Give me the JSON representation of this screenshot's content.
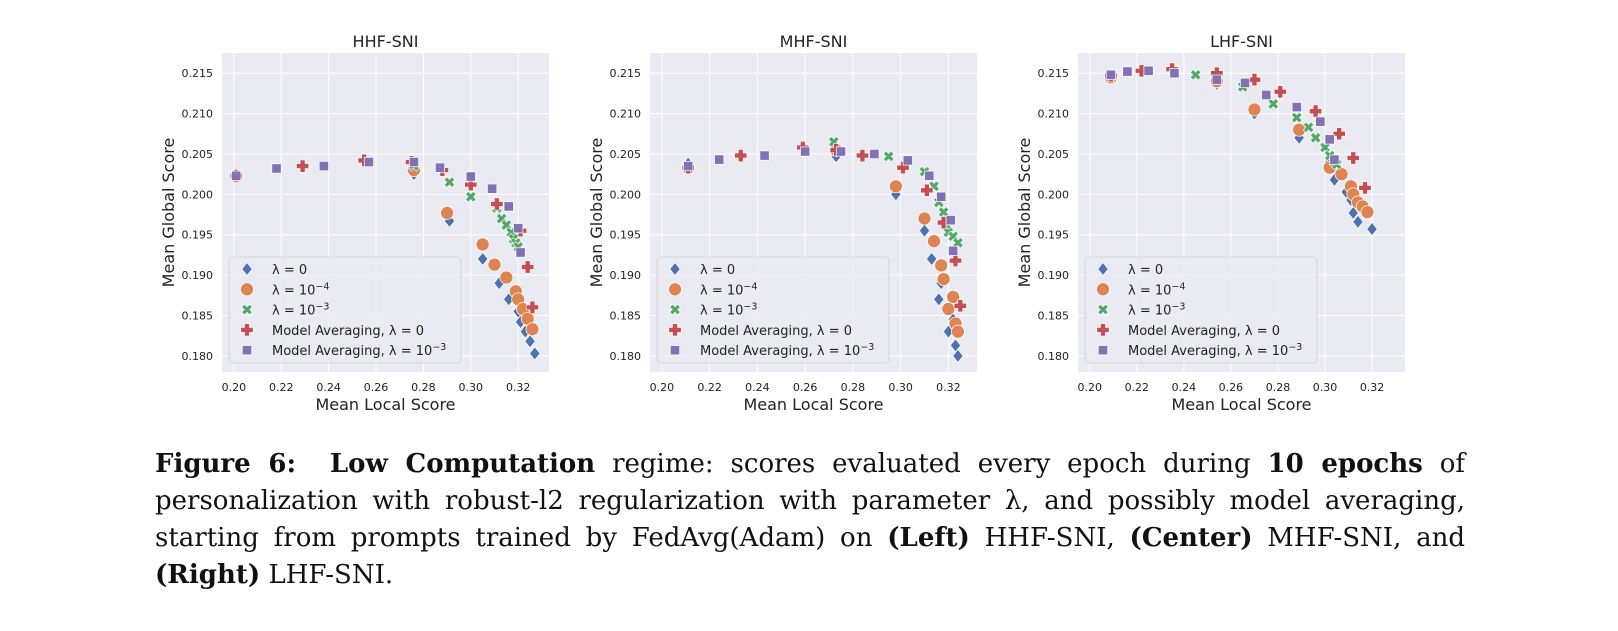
{
  "colors": {
    "panel_bg": "#eaeaf2",
    "grid": "#ffffff",
    "lambda0": "#4c72b0",
    "lambda1e4": "#dd8452",
    "lambda1e3": "#55a868",
    "avg0": "#c44e52",
    "avg1e3": "#8172b3"
  },
  "legend": {
    "items": [
      {
        "key": "lambda0",
        "pre": "",
        "expr": "λ = 0",
        "sup": "",
        "marker": "diamond"
      },
      {
        "key": "lambda1e4",
        "pre": "",
        "expr": "λ = 10",
        "sup": "−4",
        "marker": "circle"
      },
      {
        "key": "lambda1e3",
        "pre": "",
        "expr": "λ = 10",
        "sup": "−3",
        "marker": "x"
      },
      {
        "key": "avg0",
        "pre": "Model Averaging, ",
        "expr": "λ = 0",
        "sup": "",
        "marker": "plus"
      },
      {
        "key": "avg1e3",
        "pre": "Model Averaging, ",
        "expr": "λ = 10",
        "sup": "−3",
        "marker": "square"
      }
    ]
  },
  "chart_data": [
    {
      "type": "scatter",
      "title": "HHF-SNI",
      "xlabel": "Mean Local Score",
      "ylabel": "Mean Global Score",
      "xlim": [
        0.195,
        0.333
      ],
      "ylim": [
        0.178,
        0.2175
      ],
      "xticks": [
        0.2,
        0.22,
        0.24,
        0.26,
        0.28,
        0.3,
        0.32
      ],
      "xtick_labels": [
        "0.20",
        "0.22",
        "0.24",
        "0.26",
        "0.28",
        "0.30",
        "0.32"
      ],
      "yticks": [
        0.18,
        0.185,
        0.19,
        0.195,
        0.2,
        0.205,
        0.21,
        0.215
      ],
      "ytick_labels": [
        "0.180",
        "0.185",
        "0.190",
        "0.195",
        "0.200",
        "0.205",
        "0.210",
        "0.215"
      ],
      "series": [
        {
          "key": "lambda0",
          "points": [
            [
              0.201,
              0.2025
            ],
            [
              0.276,
              0.2025
            ],
            [
              0.291,
              0.1967
            ],
            [
              0.305,
              0.192
            ],
            [
              0.312,
              0.189
            ],
            [
              0.316,
              0.187
            ],
            [
              0.32,
              0.1855
            ],
            [
              0.321,
              0.1842
            ],
            [
              0.323,
              0.183
            ],
            [
              0.325,
              0.1818
            ],
            [
              0.327,
              0.1803
            ]
          ]
        },
        {
          "key": "lambda1e4",
          "points": [
            [
              0.201,
              0.2022
            ],
            [
              0.276,
              0.203
            ],
            [
              0.29,
              0.1977
            ],
            [
              0.305,
              0.1938
            ],
            [
              0.31,
              0.1913
            ],
            [
              0.315,
              0.1897
            ],
            [
              0.319,
              0.188
            ],
            [
              0.32,
              0.187
            ],
            [
              0.322,
              0.1858
            ],
            [
              0.324,
              0.1846
            ],
            [
              0.326,
              0.1833
            ]
          ]
        },
        {
          "key": "lambda1e3",
          "points": [
            [
              0.201,
              0.2023
            ],
            [
              0.276,
              0.2035
            ],
            [
              0.291,
              0.2015
            ],
            [
              0.3,
              0.1997
            ],
            [
              0.311,
              0.1983
            ],
            [
              0.313,
              0.197
            ],
            [
              0.315,
              0.1962
            ],
            [
              0.317,
              0.1953
            ],
            [
              0.318,
              0.1945
            ],
            [
              0.319,
              0.194
            ],
            [
              0.32,
              0.1935
            ]
          ]
        },
        {
          "key": "avg0",
          "points": [
            [
              0.201,
              0.2023
            ],
            [
              0.229,
              0.2035
            ],
            [
              0.255,
              0.2042
            ],
            [
              0.275,
              0.204
            ],
            [
              0.288,
              0.203
            ],
            [
              0.3,
              0.2012
            ],
            [
              0.311,
              0.1988
            ],
            [
              0.321,
              0.1955
            ],
            [
              0.324,
              0.191
            ],
            [
              0.326,
              0.186
            ]
          ]
        },
        {
          "key": "avg1e3",
          "points": [
            [
              0.201,
              0.2023
            ],
            [
              0.218,
              0.2032
            ],
            [
              0.238,
              0.2035
            ],
            [
              0.257,
              0.204
            ],
            [
              0.276,
              0.204
            ],
            [
              0.287,
              0.2033
            ],
            [
              0.3,
              0.2022
            ],
            [
              0.309,
              0.2007
            ],
            [
              0.316,
              0.1985
            ],
            [
              0.32,
              0.1958
            ],
            [
              0.321,
              0.1928
            ]
          ]
        }
      ]
    },
    {
      "type": "scatter",
      "title": "MHF-SNI",
      "xlabel": "Mean Local Score",
      "ylabel": "Mean Global Score",
      "xlim": [
        0.195,
        0.332
      ],
      "ylim": [
        0.178,
        0.2175
      ],
      "xticks": [
        0.2,
        0.22,
        0.24,
        0.26,
        0.28,
        0.3,
        0.32
      ],
      "xtick_labels": [
        "0.20",
        "0.22",
        "0.24",
        "0.26",
        "0.28",
        "0.30",
        "0.32"
      ],
      "yticks": [
        0.18,
        0.185,
        0.19,
        0.195,
        0.2,
        0.205,
        0.21,
        0.215
      ],
      "ytick_labels": [
        "0.180",
        "0.185",
        "0.190",
        "0.195",
        "0.200",
        "0.205",
        "0.210",
        "0.215"
      ],
      "series": [
        {
          "key": "lambda0",
          "points": [
            [
              0.211,
              0.2038
            ],
            [
              0.273,
              0.2047
            ],
            [
              0.298,
              0.2
            ],
            [
              0.31,
              0.1955
            ],
            [
              0.313,
              0.192
            ],
            [
              0.316,
              0.187
            ],
            [
              0.317,
              0.189
            ],
            [
              0.32,
              0.183
            ],
            [
              0.322,
              0.1845
            ],
            [
              0.323,
              0.1813
            ],
            [
              0.324,
              0.18
            ]
          ]
        },
        {
          "key": "lambda1e4",
          "points": [
            [
              0.211,
              0.2033
            ],
            [
              0.273,
              0.2055
            ],
            [
              0.298,
              0.201
            ],
            [
              0.31,
              0.197
            ],
            [
              0.314,
              0.1942
            ],
            [
              0.317,
              0.1912
            ],
            [
              0.318,
              0.1895
            ],
            [
              0.32,
              0.1858
            ],
            [
              0.322,
              0.1873
            ],
            [
              0.323,
              0.184
            ],
            [
              0.324,
              0.183
            ]
          ]
        },
        {
          "key": "lambda1e3",
          "points": [
            [
              0.211,
              0.2035
            ],
            [
              0.272,
              0.2065
            ],
            [
              0.295,
              0.2047
            ],
            [
              0.31,
              0.2028
            ],
            [
              0.314,
              0.201
            ],
            [
              0.316,
              0.199
            ],
            [
              0.318,
              0.1978
            ],
            [
              0.319,
              0.1963
            ],
            [
              0.32,
              0.1953
            ],
            [
              0.322,
              0.1948
            ],
            [
              0.324,
              0.194
            ]
          ]
        },
        {
          "key": "avg0",
          "points": [
            [
              0.211,
              0.2033
            ],
            [
              0.233,
              0.2048
            ],
            [
              0.259,
              0.2058
            ],
            [
              0.273,
              0.2055
            ],
            [
              0.284,
              0.2048
            ],
            [
              0.301,
              0.2033
            ],
            [
              0.311,
              0.2005
            ],
            [
              0.318,
              0.1965
            ],
            [
              0.323,
              0.1918
            ],
            [
              0.325,
              0.1862
            ]
          ]
        },
        {
          "key": "avg1e3",
          "points": [
            [
              0.211,
              0.2035
            ],
            [
              0.224,
              0.2043
            ],
            [
              0.243,
              0.2048
            ],
            [
              0.26,
              0.2053
            ],
            [
              0.275,
              0.2053
            ],
            [
              0.289,
              0.205
            ],
            [
              0.303,
              0.2042
            ],
            [
              0.312,
              0.2023
            ],
            [
              0.317,
              0.1997
            ],
            [
              0.321,
              0.1968
            ],
            [
              0.322,
              0.193
            ]
          ]
        }
      ]
    },
    {
      "type": "scatter",
      "title": "LHF-SNI",
      "xlabel": "Mean Local Score",
      "ylabel": "Mean Global Score",
      "xlim": [
        0.195,
        0.334
      ],
      "ylim": [
        0.178,
        0.2175
      ],
      "xticks": [
        0.2,
        0.22,
        0.24,
        0.26,
        0.28,
        0.3,
        0.32
      ],
      "xtick_labels": [
        "0.20",
        "0.22",
        "0.24",
        "0.26",
        "0.28",
        "0.30",
        "0.32"
      ],
      "yticks": [
        0.18,
        0.185,
        0.19,
        0.195,
        0.2,
        0.205,
        0.21,
        0.215
      ],
      "ytick_labels": [
        "0.180",
        "0.185",
        "0.190",
        "0.195",
        "0.200",
        "0.205",
        "0.210",
        "0.215"
      ],
      "series": [
        {
          "key": "lambda0",
          "points": [
            [
              0.209,
              0.2148
            ],
            [
              0.254,
              0.2137
            ],
            [
              0.27,
              0.21
            ],
            [
              0.289,
              0.207
            ],
            [
              0.302,
              0.204
            ],
            [
              0.304,
              0.2018
            ],
            [
              0.309,
              0.2003
            ],
            [
              0.311,
              0.1993
            ],
            [
              0.312,
              0.1977
            ],
            [
              0.314,
              0.1966
            ],
            [
              0.32,
              0.1957
            ]
          ]
        },
        {
          "key": "lambda1e4",
          "points": [
            [
              0.209,
              0.2145
            ],
            [
              0.254,
              0.214
            ],
            [
              0.27,
              0.2105
            ],
            [
              0.289,
              0.208
            ],
            [
              0.302,
              0.2033
            ],
            [
              0.307,
              0.2025
            ],
            [
              0.311,
              0.201
            ],
            [
              0.312,
              0.2
            ],
            [
              0.314,
              0.199
            ],
            [
              0.316,
              0.1985
            ],
            [
              0.318,
              0.1978
            ]
          ]
        },
        {
          "key": "lambda1e3",
          "points": [
            [
              0.209,
              0.2147
            ],
            [
              0.245,
              0.2148
            ],
            [
              0.265,
              0.2133
            ],
            [
              0.278,
              0.2112
            ],
            [
              0.288,
              0.2095
            ],
            [
              0.293,
              0.2083
            ],
            [
              0.296,
              0.207
            ],
            [
              0.3,
              0.2058
            ],
            [
              0.302,
              0.2048
            ],
            [
              0.304,
              0.204
            ],
            [
              0.305,
              0.2037
            ]
          ]
        },
        {
          "key": "avg0",
          "points": [
            [
              0.209,
              0.2147
            ],
            [
              0.222,
              0.2153
            ],
            [
              0.235,
              0.2155
            ],
            [
              0.254,
              0.215
            ],
            [
              0.27,
              0.2142
            ],
            [
              0.281,
              0.2127
            ],
            [
              0.296,
              0.2103
            ],
            [
              0.306,
              0.2075
            ],
            [
              0.312,
              0.2045
            ],
            [
              0.317,
              0.2008
            ]
          ]
        },
        {
          "key": "avg1e3",
          "points": [
            [
              0.209,
              0.2148
            ],
            [
              0.216,
              0.2152
            ],
            [
              0.225,
              0.2153
            ],
            [
              0.236,
              0.215
            ],
            [
              0.254,
              0.2142
            ],
            [
              0.266,
              0.2138
            ],
            [
              0.275,
              0.2123
            ],
            [
              0.288,
              0.2108
            ],
            [
              0.298,
              0.209
            ],
            [
              0.302,
              0.2068
            ],
            [
              0.304,
              0.2043
            ]
          ]
        }
      ]
    }
  ],
  "caption": {
    "label": "Figure 6:",
    "term": "Low Computation",
    "t1": " regime: scores evaluated every epoch during ",
    "epochs": "10 epochs",
    "t2": " of personalization with robust-l2 regularization with parameter λ, and possibly model averaging, starting from prompts trained by FedAvg(Adam) on ",
    "left": "(Left)",
    "t3": " HHF-SNI, ",
    "center": "(Center)",
    "t4": " MHF-SNI, and ",
    "right": "(Right)",
    "t5": " LHF-SNI."
  }
}
